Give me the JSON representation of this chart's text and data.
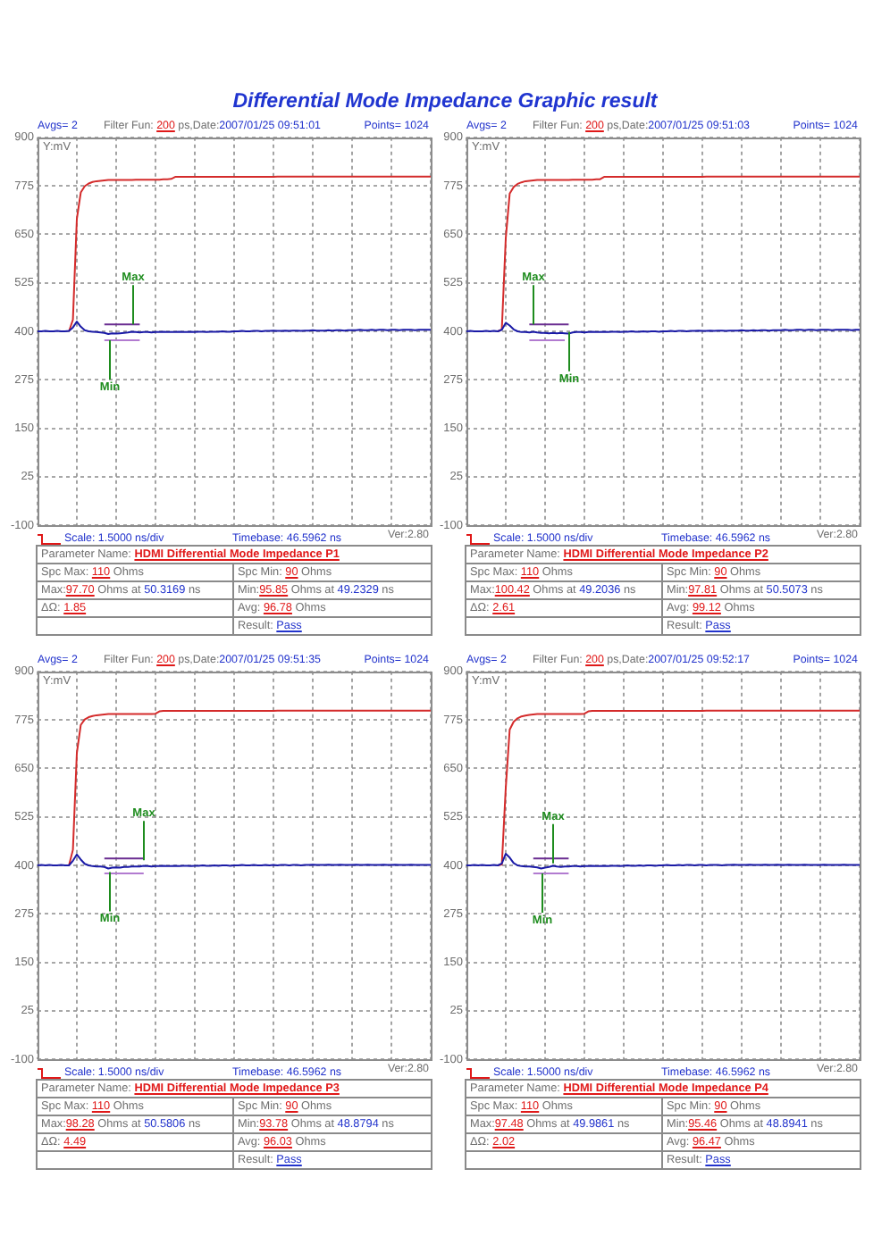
{
  "chart_data": [
    {
      "type": "line",
      "title": "Differential Mode Impedance Graphic result",
      "ylabel": "Y:mV",
      "categories": [
        null,
        null,
        null,
        null,
        null,
        null,
        null,
        null,
        null,
        null,
        null,
        null,
        null,
        null,
        null,
        null,
        null,
        null,
        null,
        null,
        null,
        null,
        null,
        null,
        null,
        null,
        null,
        null,
        null,
        null,
        null,
        null,
        null,
        null,
        null,
        null,
        null,
        null,
        null,
        null,
        null,
        null,
        null,
        null,
        null,
        null,
        null,
        null,
        null,
        null,
        null,
        null,
        null,
        null,
        null,
        null,
        null,
        null,
        null,
        null,
        null,
        null,
        null,
        null,
        null,
        null,
        null,
        null,
        null,
        null,
        null,
        null,
        null,
        null,
        null,
        null,
        null,
        null,
        null,
        null,
        null,
        null,
        null,
        null,
        null,
        null,
        null,
        null,
        null,
        null,
        null,
        null,
        null,
        null,
        null,
        null,
        null,
        null,
        null,
        null,
        null
      ],
      "series": [
        {
          "color": "#d42b2b",
          "values": [
            null,
            null,
            null,
            null,
            null,
            null,
            null,
            null,
            400,
            430,
            690,
            758,
            774,
            781,
            785,
            787,
            788,
            789,
            790,
            790,
            790,
            790,
            790,
            790,
            790,
            791,
            791,
            791,
            791,
            791,
            791,
            791,
            792,
            792,
            793,
            798,
            798,
            798,
            798,
            798,
            798,
            798,
            798,
            798,
            798,
            798,
            798,
            798,
            798,
            798,
            798,
            798,
            798,
            798,
            798,
            798,
            798,
            798,
            798,
            798,
            798,
            799,
            799,
            799,
            799,
            799,
            799,
            799,
            799,
            799,
            799,
            799,
            799,
            799,
            799,
            799,
            799,
            799,
            799,
            799,
            799,
            799,
            799,
            799,
            799,
            799,
            799,
            799,
            799,
            799,
            799,
            799,
            799,
            799,
            799,
            799,
            799,
            799,
            799,
            799,
            799
          ]
        },
        {
          "color": "#1a1aa6",
          "values": [
            400,
            400,
            401,
            400,
            400,
            401,
            400,
            400,
            401,
            410,
            425,
            412,
            403,
            400,
            399,
            398,
            397,
            396,
            393,
            395,
            394,
            395,
            396,
            397,
            399,
            398,
            397,
            398,
            398,
            397,
            398,
            398,
            399,
            398,
            398,
            398,
            399,
            398,
            398,
            399,
            398,
            399,
            399,
            398,
            399,
            399,
            399,
            400,
            399,
            399,
            400,
            400,
            401,
            400,
            400,
            401,
            401,
            400,
            401,
            401,
            402,
            401,
            401,
            402,
            401,
            402,
            402,
            401,
            402,
            402,
            403,
            402,
            402,
            402,
            403,
            402,
            403,
            403,
            402,
            403,
            403,
            403,
            404,
            403,
            403,
            404,
            403,
            404,
            404,
            403,
            404,
            404,
            403,
            404,
            404,
            404,
            403,
            404,
            404,
            404,
            404
          ]
        },
        {
          "color": "#6a2c91",
          "values": [
            null,
            null,
            null,
            null,
            null,
            null,
            null,
            null,
            null,
            null,
            null,
            null,
            null,
            null,
            null,
            null,
            null,
            418,
            418,
            418,
            418,
            418,
            418,
            418,
            418,
            418,
            418,
            null,
            null,
            null,
            null,
            null,
            null,
            null,
            null,
            null,
            null,
            null,
            null,
            null,
            null,
            null,
            null,
            null,
            null,
            null,
            null,
            null,
            null,
            null,
            null,
            null,
            null,
            null,
            null,
            null,
            null,
            null,
            null,
            null,
            null,
            null,
            null,
            null,
            null,
            null,
            null,
            null,
            null,
            null,
            null,
            null,
            null,
            null,
            null,
            null,
            null,
            null,
            null,
            null,
            null,
            null,
            null,
            null,
            null,
            null,
            null,
            null,
            null,
            null,
            null,
            null,
            null,
            null,
            null,
            null,
            null,
            null,
            null,
            null,
            null
          ]
        },
        {
          "color": "#b27bd0",
          "values": [
            null,
            null,
            null,
            null,
            null,
            null,
            null,
            null,
            null,
            null,
            null,
            null,
            null,
            null,
            null,
            null,
            null,
            377,
            377,
            377,
            377,
            377,
            377,
            377,
            377,
            377,
            377,
            null,
            null,
            null,
            null,
            null,
            null,
            null,
            null,
            null,
            null,
            null,
            null,
            null,
            null,
            null,
            null,
            null,
            null,
            null,
            null,
            null,
            null,
            null,
            null,
            null,
            null,
            null,
            null,
            null,
            null,
            null,
            null,
            null,
            null,
            null,
            null,
            null,
            null,
            null,
            null,
            null,
            null,
            null,
            null,
            null,
            null,
            null,
            null,
            null,
            null,
            null,
            null,
            null,
            null,
            null,
            null,
            null,
            null,
            null,
            null,
            null,
            null,
            null,
            null,
            null,
            null,
            null,
            null,
            null,
            null,
            null,
            null,
            null,
            null
          ]
        }
      ],
      "ylim": [
        -100,
        900
      ],
      "yticks": [
        -100,
        25,
        150,
        275,
        400,
        525,
        650,
        775,
        900
      ],
      "grid": true,
      "tick_labels": "y",
      "annotations": [
        "Avgs= 2",
        "Filter Fun: 200 ps,Date:2007/01/25 09:51:01",
        "Points= 1024",
        "Scale: 1.5000 ns/div",
        "Timebase: 46.5962 ns",
        "Ver:2.80",
        "Parameter Name: HDMI Differential Mode Impedance P1",
        "Spc Max: 110 Ohms",
        "Spc Min: 90 Ohms",
        "Max:97.70 Ohms at 50.3169 ns",
        "Min:95.85 Ohms at 49.2329 ns",
        "ΔΩ: 1.85",
        "Avg: 96.78 Ohms",
        "Result: Pass",
        {
          "text": "Max",
          "y": 418
        },
        {
          "text": "Min",
          "y": 377
        }
      ]
    },
    {
      "type": "line",
      "ylabel": "Y:mV",
      "categories": [
        null,
        null,
        null,
        null,
        null,
        null,
        null,
        null,
        null,
        null,
        null,
        null,
        null,
        null,
        null,
        null,
        null,
        null,
        null,
        null,
        null,
        null,
        null,
        null,
        null,
        null,
        null,
        null,
        null,
        null,
        null,
        null,
        null,
        null,
        null,
        null,
        null,
        null,
        null,
        null,
        null,
        null,
        null,
        null,
        null,
        null,
        null,
        null,
        null,
        null,
        null,
        null,
        null,
        null,
        null,
        null,
        null,
        null,
        null,
        null,
        null,
        null,
        null,
        null,
        null,
        null,
        null,
        null,
        null,
        null,
        null,
        null,
        null,
        null,
        null,
        null,
        null,
        null,
        null,
        null,
        null,
        null,
        null,
        null,
        null,
        null,
        null,
        null,
        null,
        null,
        null,
        null,
        null,
        null,
        null,
        null,
        null,
        null,
        null,
        null,
        null
      ],
      "series": [
        {
          "color": "#d42b2b",
          "values": [
            null,
            null,
            null,
            null,
            null,
            null,
            null,
            null,
            400,
            405,
            640,
            755,
            772,
            780,
            784,
            787,
            788,
            789,
            790,
            790,
            790,
            790,
            790,
            790,
            790,
            790,
            790,
            791,
            791,
            791,
            791,
            791,
            791,
            792,
            792,
            798,
            798,
            798,
            798,
            798,
            798,
            798,
            798,
            798,
            798,
            798,
            798,
            798,
            798,
            798,
            798,
            798,
            798,
            798,
            798,
            798,
            798,
            798,
            798,
            798,
            798,
            799,
            799,
            799,
            799,
            799,
            799,
            799,
            799,
            799,
            799,
            799,
            799,
            799,
            799,
            799,
            799,
            799,
            799,
            799,
            799,
            799,
            799,
            799,
            799,
            799,
            799,
            799,
            799,
            799,
            799,
            799,
            799,
            799,
            799,
            799,
            799,
            799,
            799,
            799,
            799
          ]
        },
        {
          "color": "#1a1aa6",
          "values": [
            400,
            401,
            400,
            400,
            400,
            401,
            400,
            401,
            400,
            404,
            422,
            415,
            405,
            400,
            398,
            398,
            397,
            399,
            397,
            396,
            396,
            395,
            396,
            395,
            396,
            395,
            394,
            397,
            398,
            398,
            397,
            398,
            399,
            398,
            398,
            399,
            398,
            399,
            399,
            398,
            399,
            399,
            400,
            399,
            399,
            400,
            399,
            400,
            400,
            399,
            400,
            400,
            401,
            400,
            401,
            401,
            400,
            401,
            401,
            402,
            401,
            401,
            402,
            401,
            402,
            402,
            401,
            402,
            402,
            402,
            403,
            402,
            402,
            403,
            402,
            403,
            403,
            402,
            403,
            403,
            403,
            404,
            403,
            403,
            404,
            404,
            403,
            404,
            404,
            403,
            404,
            404,
            404,
            403,
            404,
            404,
            404,
            404,
            403,
            404,
            404
          ]
        },
        {
          "color": "#6a2c91",
          "values": [
            null,
            null,
            null,
            null,
            null,
            null,
            null,
            null,
            null,
            null,
            null,
            null,
            null,
            null,
            null,
            null,
            418,
            418,
            418,
            418,
            418,
            418,
            418,
            418,
            418,
            418,
            418,
            null,
            null,
            null,
            null,
            null,
            null,
            null,
            null,
            null,
            null,
            null,
            null,
            null,
            null,
            null,
            null,
            null,
            null,
            null,
            null,
            null,
            null,
            null,
            null,
            null,
            null,
            null,
            null,
            null,
            null,
            null,
            null,
            null,
            null,
            null,
            null,
            null,
            null,
            null,
            null,
            null,
            null,
            null,
            null,
            null,
            null,
            null,
            null,
            null,
            null,
            null,
            null,
            null,
            null,
            null,
            null,
            null,
            null,
            null,
            null,
            null,
            null,
            null,
            null,
            null,
            null,
            null,
            null,
            null,
            null,
            null,
            null,
            null,
            null
          ]
        },
        {
          "color": "#b27bd0",
          "values": [
            null,
            null,
            null,
            null,
            null,
            null,
            null,
            null,
            null,
            null,
            null,
            null,
            null,
            null,
            null,
            null,
            377,
            377,
            377,
            377,
            377,
            377,
            377,
            377,
            377,
            377,
            null,
            null,
            null,
            null,
            null,
            null,
            null,
            null,
            null,
            null,
            null,
            null,
            null,
            null,
            null,
            null,
            null,
            null,
            null,
            null,
            null,
            null,
            null,
            null,
            null,
            null,
            null,
            null,
            null,
            null,
            null,
            null,
            null,
            null,
            null,
            null,
            null,
            null,
            null,
            null,
            null,
            null,
            null,
            null,
            null,
            null,
            null,
            null,
            null,
            null,
            null,
            null,
            null,
            null,
            null,
            null,
            null,
            null,
            null,
            null,
            null,
            null,
            null,
            null,
            null,
            null,
            null,
            null,
            null,
            null,
            null,
            null,
            null,
            null,
            null
          ]
        }
      ],
      "ylim": [
        -100,
        900
      ],
      "yticks": [
        -100,
        25,
        150,
        275,
        400,
        525,
        650,
        775,
        900
      ],
      "grid": true,
      "tick_labels": "y",
      "annotations": [
        "Avgs= 2",
        "Filter Fun: 200 ps,Date:2007/01/25 09:51:03",
        "Points= 1024",
        "Scale: 1.5000 ns/div",
        "Timebase: 46.5962 ns",
        "Ver:2.80",
        "Parameter Name: HDMI Differential Mode Impedance P2",
        "Spc Max: 110 Ohms",
        "Spc Min: 90 Ohms",
        "Max:100.42 Ohms at 49.2036 ns",
        "Min:97.81 Ohms at 50.5073 ns",
        "ΔΩ: 2.61",
        "Avg: 99.12 Ohms",
        "Result: Pass",
        {
          "text": "Max",
          "y": 418
        },
        {
          "text": "Min",
          "y": 398
        }
      ]
    },
    {
      "type": "line",
      "ylabel": "Y:mV",
      "categories": [
        null,
        null,
        null,
        null,
        null,
        null,
        null,
        null,
        null,
        null,
        null,
        null,
        null,
        null,
        null,
        null,
        null,
        null,
        null,
        null,
        null,
        null,
        null,
        null,
        null,
        null,
        null,
        null,
        null,
        null,
        null,
        null,
        null,
        null,
        null,
        null,
        null,
        null,
        null,
        null,
        null,
        null,
        null,
        null,
        null,
        null,
        null,
        null,
        null,
        null,
        null,
        null,
        null,
        null,
        null,
        null,
        null,
        null,
        null,
        null,
        null,
        null,
        null,
        null,
        null,
        null,
        null,
        null,
        null,
        null,
        null,
        null,
        null,
        null,
        null,
        null,
        null,
        null,
        null,
        null,
        null,
        null,
        null,
        null,
        null,
        null,
        null,
        null,
        null,
        null,
        null,
        null,
        null,
        null,
        null,
        null,
        null,
        null,
        null,
        null,
        null
      ],
      "series": [
        {
          "color": "#d42b2b",
          "values": [
            null,
            null,
            null,
            null,
            null,
            null,
            null,
            null,
            400,
            440,
            690,
            762,
            776,
            782,
            785,
            787,
            788,
            789,
            790,
            790,
            790,
            790,
            790,
            790,
            790,
            790,
            790,
            790,
            790,
            790,
            791,
            797,
            798,
            798,
            798,
            798,
            798,
            798,
            798,
            798,
            798,
            798,
            798,
            798,
            798,
            798,
            798,
            798,
            798,
            798,
            798,
            798,
            798,
            798,
            798,
            798,
            798,
            798,
            798,
            798,
            798,
            799,
            799,
            799,
            799,
            799,
            799,
            799,
            799,
            799,
            799,
            799,
            799,
            799,
            799,
            799,
            799,
            799,
            799,
            799,
            799,
            799,
            799,
            799,
            799,
            799,
            799,
            799,
            799,
            799,
            799,
            799,
            799,
            799,
            799,
            799,
            799,
            799,
            799,
            799,
            799
          ]
        },
        {
          "color": "#1a1aa6",
          "values": [
            400,
            401,
            400,
            401,
            400,
            400,
            401,
            400,
            400,
            412,
            428,
            415,
            404,
            400,
            398,
            397,
            397,
            396,
            392,
            394,
            395,
            394,
            396,
            396,
            397,
            397,
            397,
            399,
            398,
            397,
            398,
            398,
            399,
            398,
            398,
            399,
            398,
            399,
            399,
            398,
            399,
            399,
            400,
            399,
            399,
            400,
            399,
            400,
            400,
            399,
            400,
            400,
            401,
            400,
            400,
            401,
            400,
            400,
            401,
            400,
            401,
            400,
            401,
            401,
            400,
            401,
            401,
            400,
            401,
            401,
            402,
            401,
            401,
            401,
            402,
            401,
            401,
            402,
            401,
            401,
            401,
            402,
            401,
            401,
            402,
            401,
            401,
            401,
            402,
            401,
            401,
            402,
            401,
            401,
            401,
            402,
            401,
            401,
            401,
            401,
            401
          ]
        },
        {
          "color": "#6a2c91",
          "values": [
            null,
            null,
            null,
            null,
            null,
            null,
            null,
            null,
            null,
            null,
            null,
            null,
            null,
            null,
            null,
            null,
            null,
            418,
            418,
            418,
            418,
            418,
            418,
            418,
            418,
            418,
            418,
            418,
            null,
            null,
            null,
            null,
            null,
            null,
            null,
            null,
            null,
            null,
            null,
            null,
            null,
            null,
            null,
            null,
            null,
            null,
            null,
            null,
            null,
            null,
            null,
            null,
            null,
            null,
            null,
            null,
            null,
            null,
            null,
            null,
            null,
            null,
            null,
            null,
            null,
            null,
            null,
            null,
            null,
            null,
            null,
            null,
            null,
            null,
            null,
            null,
            null,
            null,
            null,
            null,
            null,
            null,
            null,
            null,
            null,
            null,
            null,
            null,
            null,
            null,
            null,
            null,
            null,
            null,
            null,
            null,
            null,
            null,
            null,
            null,
            null
          ]
        },
        {
          "color": "#b27bd0",
          "values": [
            null,
            null,
            null,
            null,
            null,
            null,
            null,
            null,
            null,
            null,
            null,
            null,
            null,
            null,
            null,
            null,
            null,
            379,
            379,
            379,
            379,
            379,
            379,
            379,
            379,
            379,
            379,
            379,
            null,
            null,
            null,
            null,
            null,
            null,
            null,
            null,
            null,
            null,
            null,
            null,
            null,
            null,
            null,
            null,
            null,
            null,
            null,
            null,
            null,
            null,
            null,
            null,
            null,
            null,
            null,
            null,
            null,
            null,
            null,
            null,
            null,
            null,
            null,
            null,
            null,
            null,
            null,
            null,
            null,
            null,
            null,
            null,
            null,
            null,
            null,
            null,
            null,
            null,
            null,
            null,
            null,
            null,
            null,
            null,
            null,
            null,
            null,
            null,
            null,
            null,
            null,
            null,
            null,
            null,
            null,
            null,
            null,
            null,
            null,
            null,
            null
          ]
        }
      ],
      "ylim": [
        -100,
        900
      ],
      "yticks": [
        -100,
        25,
        150,
        275,
        400,
        525,
        650,
        775,
        900
      ],
      "grid": true,
      "tick_labels": "y",
      "annotations": [
        "Avgs= 2",
        "Filter Fun: 200 ps,Date:2007/01/25 09:51:35",
        "Points= 1024",
        "Scale: 1.5000 ns/div",
        "Timebase: 46.5962 ns",
        "Ver:2.80",
        "Parameter Name: HDMI Differential Mode Impedance P3",
        "Spc Max: 110 Ohms",
        "Spc Min: 90 Ohms",
        "Max:98.28 Ohms at 50.5806 ns",
        "Min:93.78 Ohms at 48.8794 ns",
        "ΔΩ: 4.49",
        "Avg: 96.03 Ohms",
        "Result: Pass",
        {
          "text": "Max",
          "y": 413
        },
        {
          "text": "Min",
          "y": 383
        }
      ]
    },
    {
      "type": "line",
      "ylabel": "Y:mV",
      "categories": [
        null,
        null,
        null,
        null,
        null,
        null,
        null,
        null,
        null,
        null,
        null,
        null,
        null,
        null,
        null,
        null,
        null,
        null,
        null,
        null,
        null,
        null,
        null,
        null,
        null,
        null,
        null,
        null,
        null,
        null,
        null,
        null,
        null,
        null,
        null,
        null,
        null,
        null,
        null,
        null,
        null,
        null,
        null,
        null,
        null,
        null,
        null,
        null,
        null,
        null,
        null,
        null,
        null,
        null,
        null,
        null,
        null,
        null,
        null,
        null,
        null,
        null,
        null,
        null,
        null,
        null,
        null,
        null,
        null,
        null,
        null,
        null,
        null,
        null,
        null,
        null,
        null,
        null,
        null,
        null,
        null,
        null,
        null,
        null,
        null,
        null,
        null,
        null,
        null,
        null,
        null,
        null,
        null,
        null,
        null,
        null,
        null,
        null,
        null,
        null,
        null
      ],
      "series": [
        {
          "color": "#d42b2b",
          "values": [
            null,
            null,
            null,
            null,
            null,
            null,
            null,
            null,
            400,
            402,
            600,
            750,
            770,
            779,
            784,
            786,
            788,
            789,
            790,
            790,
            790,
            790,
            790,
            790,
            790,
            790,
            790,
            790,
            790,
            790,
            791,
            797,
            798,
            798,
            798,
            798,
            798,
            798,
            798,
            798,
            798,
            798,
            798,
            798,
            798,
            798,
            798,
            798,
            798,
            798,
            798,
            798,
            798,
            798,
            798,
            798,
            798,
            798,
            798,
            798,
            798,
            799,
            799,
            799,
            799,
            799,
            799,
            799,
            799,
            799,
            799,
            799,
            799,
            799,
            799,
            799,
            799,
            799,
            799,
            799,
            799,
            799,
            799,
            799,
            799,
            799,
            799,
            799,
            799,
            799,
            799,
            799,
            799,
            799,
            799,
            799,
            799,
            799,
            799,
            799,
            799
          ]
        },
        {
          "color": "#1a1aa6",
          "values": [
            400,
            400,
            401,
            400,
            401,
            400,
            400,
            401,
            400,
            405,
            430,
            420,
            406,
            400,
            398,
            397,
            397,
            396,
            395,
            392,
            394,
            396,
            399,
            397,
            396,
            397,
            397,
            398,
            398,
            397,
            398,
            398,
            399,
            398,
            398,
            399,
            398,
            399,
            399,
            398,
            399,
            400,
            399,
            399,
            400,
            399,
            400,
            400,
            399,
            400,
            400,
            401,
            400,
            400,
            401,
            400,
            401,
            401,
            400,
            401,
            401,
            400,
            401,
            401,
            401,
            400,
            401,
            401,
            402,
            401,
            401,
            401,
            402,
            401,
            401,
            401,
            402,
            401,
            401,
            402,
            401,
            401,
            402,
            401,
            401,
            401,
            402,
            401,
            401,
            401,
            401,
            402,
            401,
            401,
            401,
            401,
            402,
            401,
            401,
            401,
            401
          ]
        },
        {
          "color": "#6a2c91",
          "values": [
            null,
            null,
            null,
            null,
            null,
            null,
            null,
            null,
            null,
            null,
            null,
            null,
            null,
            null,
            null,
            null,
            null,
            418,
            418,
            418,
            418,
            418,
            418,
            418,
            418,
            418,
            418,
            null,
            null,
            null,
            null,
            null,
            null,
            null,
            null,
            null,
            null,
            null,
            null,
            null,
            null,
            null,
            null,
            null,
            null,
            null,
            null,
            null,
            null,
            null,
            null,
            null,
            null,
            null,
            null,
            null,
            null,
            null,
            null,
            null,
            null,
            null,
            null,
            null,
            null,
            null,
            null,
            null,
            null,
            null,
            null,
            null,
            null,
            null,
            null,
            null,
            null,
            null,
            null,
            null,
            null,
            null,
            null,
            null,
            null,
            null,
            null,
            null,
            null,
            null,
            null,
            null,
            null,
            null,
            null,
            null,
            null,
            null,
            null,
            null,
            null
          ]
        },
        {
          "color": "#b27bd0",
          "values": [
            null,
            null,
            null,
            null,
            null,
            null,
            null,
            null,
            null,
            null,
            null,
            null,
            null,
            null,
            null,
            null,
            null,
            379,
            379,
            379,
            379,
            379,
            379,
            379,
            379,
            379,
            379,
            null,
            null,
            null,
            null,
            null,
            null,
            null,
            null,
            null,
            null,
            null,
            null,
            null,
            null,
            null,
            null,
            null,
            null,
            null,
            null,
            null,
            null,
            null,
            null,
            null,
            null,
            null,
            null,
            null,
            null,
            null,
            null,
            null,
            null,
            null,
            null,
            null,
            null,
            null,
            null,
            null,
            null,
            null,
            null,
            null,
            null,
            null,
            null,
            null,
            null,
            null,
            null,
            null,
            null,
            null,
            null,
            null,
            null,
            null,
            null,
            null,
            null,
            null,
            null,
            null,
            null,
            null,
            null,
            null,
            null,
            null,
            null,
            null,
            null
          ]
        }
      ],
      "ylim": [
        -100,
        900
      ],
      "yticks": [
        -100,
        25,
        150,
        275,
        400,
        525,
        650,
        775,
        900
      ],
      "grid": true,
      "tick_labels": "y",
      "annotations": [
        "Avgs= 2",
        "Filter Fun: 200 ps,Date:2007/01/25 09:52:17",
        "Points= 1024",
        "Scale: 1.5000 ns/div",
        "Timebase: 46.5962 ns",
        "Ver:2.80",
        "Parameter Name: HDMI Differential Mode Impedance P4",
        "Spc Max: 110 Ohms",
        "Spc Min: 90 Ohms",
        "Max:97.48 Ohms at 49.9861 ns",
        "Min:95.46 Ohms at 48.8941 ns",
        "ΔΩ: 2.02",
        "Avg: 96.47 Ohms",
        "Result: Pass",
        {
          "text": "Max",
          "y": 405
        },
        {
          "text": "Min",
          "y": 379
        }
      ]
    }
  ]
}
